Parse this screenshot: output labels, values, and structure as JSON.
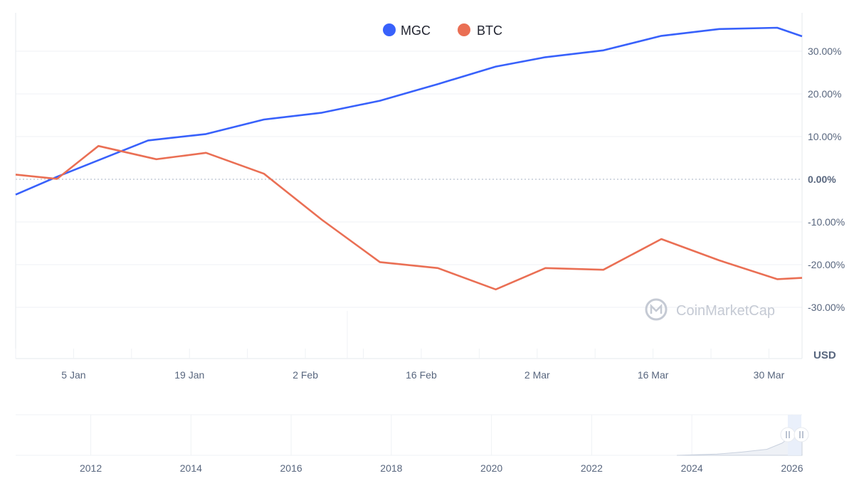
{
  "chart_data": [
    {
      "type": "line",
      "title": "",
      "xlabel": "",
      "ylabel": "",
      "unit": "USD",
      "x_ticks": [
        "5 Jan",
        "19 Jan",
        "2 Feb",
        "16 Feb",
        "2 Mar",
        "16 Mar",
        "30 Mar"
      ],
      "y_ticks": [
        "30.00%",
        "20.00%",
        "10.00%",
        "0.00%",
        "-10.00%",
        "-20.00%",
        "-30.00%"
      ],
      "ylim": [
        -42,
        39
      ],
      "grid": true,
      "legend_position": "top-center",
      "x": [
        "Dec 29",
        "Jan 4",
        "Jan 12",
        "Jan 19",
        "Jan 26",
        "Feb 2",
        "Feb 9",
        "Feb 16",
        "Feb 23",
        "Mar 2",
        "Mar 9",
        "Mar 16",
        "Mar 23",
        "Mar 30",
        "Apr 3"
      ],
      "series": [
        {
          "name": "MGC",
          "color": "#3861fb",
          "points": [
            [
              "Dec 29",
              -3.6
            ],
            [
              "Jan 3",
              0.6
            ],
            [
              "Jan 14",
              9.1
            ],
            [
              "Jan 21",
              10.6
            ],
            [
              "Jan 28",
              14.0
            ],
            [
              "Feb 4",
              15.6
            ],
            [
              "Feb 11",
              18.4
            ],
            [
              "Feb 18",
              22.3
            ],
            [
              "Feb 25",
              26.4
            ],
            [
              "Mar 3",
              28.6
            ],
            [
              "Mar 10",
              30.2
            ],
            [
              "Mar 17",
              33.6
            ],
            [
              "Mar 24",
              35.2
            ],
            [
              "Mar 31",
              35.5
            ],
            [
              "Apr 3",
              33.5
            ]
          ]
        },
        {
          "name": "BTC",
          "color": "#ea6f54",
          "points": [
            [
              "Dec 29",
              1.1
            ],
            [
              "Jan 3",
              0.1
            ],
            [
              "Jan 8",
              7.8
            ],
            [
              "Jan 15",
              4.7
            ],
            [
              "Jan 21",
              6.2
            ],
            [
              "Jan 28",
              1.3
            ],
            [
              "Feb 4",
              -9.5
            ],
            [
              "Feb 11",
              -19.4
            ],
            [
              "Feb 18",
              -20.8
            ],
            [
              "Feb 25",
              -25.8
            ],
            [
              "Mar 3",
              -20.8
            ],
            [
              "Mar 10",
              -21.2
            ],
            [
              "Mar 17",
              -14.0
            ],
            [
              "Mar 24",
              -19.0
            ],
            [
              "Mar 31",
              -23.4
            ],
            [
              "Apr 3",
              -23.1
            ]
          ]
        }
      ]
    },
    {
      "type": "area",
      "title": "",
      "x_ticks": [
        "2012",
        "2014",
        "2016",
        "2018",
        "2020",
        "2022",
        "2024",
        "2026"
      ],
      "xlim": [
        2010.5,
        2026.2
      ],
      "selected_range": [
        "Jan 2026",
        "Apr 2026"
      ],
      "series": [
        {
          "name": "",
          "points": [
            [
              2023.7,
              0.0
            ],
            [
              2024.5,
              0.03
            ],
            [
              2025.0,
              0.08
            ],
            [
              2025.5,
              0.15
            ],
            [
              2025.8,
              0.3
            ],
            [
              2026.0,
              0.48
            ],
            [
              2026.2,
              0.55
            ]
          ]
        }
      ]
    }
  ],
  "watermark": {
    "text": "CoinMarketCap"
  },
  "colors": {
    "grid": "#eff2f5",
    "axis": "#e6e9ee",
    "tick_text": "#58667e",
    "zero_line": "#a6b0c3",
    "navigator_fill": "#e8eefb"
  }
}
